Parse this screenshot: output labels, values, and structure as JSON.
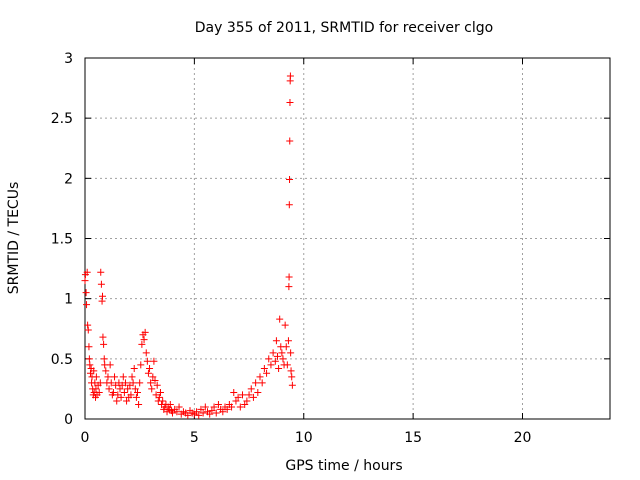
{
  "chart_data": {
    "type": "scatter",
    "title": "Day 355 of 2011, SRMTID for receiver clgo",
    "xlabel": "GPS time / hours",
    "ylabel": "SRMTID / TECUs",
    "xlim": [
      0,
      24
    ],
    "ylim": [
      0,
      3
    ],
    "grid": true,
    "marker": "+",
    "color": "#ff0000",
    "x_ticks": [
      0,
      5,
      10,
      15,
      20
    ],
    "x_tick_labels": [
      "0",
      "5",
      "10",
      "15",
      "20"
    ],
    "y_ticks": [
      0,
      0.5,
      1,
      1.5,
      2,
      2.5,
      3
    ],
    "y_tick_labels": [
      "0",
      "0.5",
      "1",
      "1.5",
      "2",
      "2.5",
      "3"
    ],
    "series": [
      {
        "name": "SRMTID",
        "points": [
          [
            0.0,
            1.15
          ],
          [
            0.02,
            1.2
          ],
          [
            0.05,
            1.05
          ],
          [
            0.07,
            0.95
          ],
          [
            0.1,
            1.22
          ],
          [
            0.12,
            0.78
          ],
          [
            0.15,
            0.74
          ],
          [
            0.18,
            0.6
          ],
          [
            0.2,
            0.5
          ],
          [
            0.22,
            0.45
          ],
          [
            0.25,
            0.38
          ],
          [
            0.28,
            0.42
          ],
          [
            0.3,
            0.3
          ],
          [
            0.32,
            0.35
          ],
          [
            0.35,
            0.25
          ],
          [
            0.38,
            0.2
          ],
          [
            0.4,
            0.4
          ],
          [
            0.42,
            0.22
          ],
          [
            0.45,
            0.3
          ],
          [
            0.48,
            0.18
          ],
          [
            0.5,
            0.25
          ],
          [
            0.52,
            0.35
          ],
          [
            0.55,
            0.2
          ],
          [
            0.6,
            0.28
          ],
          [
            0.65,
            0.22
          ],
          [
            0.7,
            0.3
          ],
          [
            0.72,
            1.22
          ],
          [
            0.75,
            1.12
          ],
          [
            0.78,
            0.98
          ],
          [
            0.8,
            1.02
          ],
          [
            0.82,
            0.68
          ],
          [
            0.85,
            0.62
          ],
          [
            0.88,
            0.5
          ],
          [
            0.9,
            0.45
          ],
          [
            0.95,
            0.4
          ],
          [
            1.0,
            0.3
          ],
          [
            1.05,
            0.35
          ],
          [
            1.1,
            0.25
          ],
          [
            1.15,
            0.45
          ],
          [
            1.2,
            0.3
          ],
          [
            1.25,
            0.2
          ],
          [
            1.3,
            0.22
          ],
          [
            1.35,
            0.35
          ],
          [
            1.4,
            0.28
          ],
          [
            1.45,
            0.15
          ],
          [
            1.5,
            0.2
          ],
          [
            1.55,
            0.3
          ],
          [
            1.6,
            0.25
          ],
          [
            1.65,
            0.18
          ],
          [
            1.7,
            0.28
          ],
          [
            1.75,
            0.35
          ],
          [
            1.8,
            0.22
          ],
          [
            1.85,
            0.3
          ],
          [
            1.9,
            0.15
          ],
          [
            1.95,
            0.25
          ],
          [
            2.0,
            0.18
          ],
          [
            2.05,
            0.28
          ],
          [
            2.1,
            0.2
          ],
          [
            2.15,
            0.35
          ],
          [
            2.2,
            0.3
          ],
          [
            2.25,
            0.42
          ],
          [
            2.3,
            0.25
          ],
          [
            2.35,
            0.18
          ],
          [
            2.4,
            0.22
          ],
          [
            2.45,
            0.12
          ],
          [
            2.5,
            0.3
          ],
          [
            2.55,
            0.45
          ],
          [
            2.6,
            0.62
          ],
          [
            2.65,
            0.7
          ],
          [
            2.7,
            0.66
          ],
          [
            2.75,
            0.72
          ],
          [
            2.8,
            0.55
          ],
          [
            2.85,
            0.48
          ],
          [
            2.9,
            0.38
          ],
          [
            2.95,
            0.42
          ],
          [
            3.0,
            0.3
          ],
          [
            3.05,
            0.25
          ],
          [
            3.1,
            0.35
          ],
          [
            3.15,
            0.48
          ],
          [
            3.2,
            0.32
          ],
          [
            3.25,
            0.2
          ],
          [
            3.3,
            0.28
          ],
          [
            3.35,
            0.15
          ],
          [
            3.4,
            0.18
          ],
          [
            3.45,
            0.22
          ],
          [
            3.5,
            0.12
          ],
          [
            3.55,
            0.15
          ],
          [
            3.6,
            0.08
          ],
          [
            3.65,
            0.1
          ],
          [
            3.7,
            0.12
          ],
          [
            3.75,
            0.06
          ],
          [
            3.8,
            0.1
          ],
          [
            3.85,
            0.08
          ],
          [
            3.9,
            0.12
          ],
          [
            3.95,
            0.07
          ],
          [
            4.0,
            0.05
          ],
          [
            4.1,
            0.08
          ],
          [
            4.2,
            0.06
          ],
          [
            4.3,
            0.1
          ],
          [
            4.4,
            0.04
          ],
          [
            4.5,
            0.06
          ],
          [
            4.6,
            0.05
          ],
          [
            4.7,
            0.03
          ],
          [
            4.8,
            0.07
          ],
          [
            4.9,
            0.05
          ],
          [
            5.0,
            0.04
          ],
          [
            5.1,
            0.06
          ],
          [
            5.2,
            0.03
          ],
          [
            5.3,
            0.08
          ],
          [
            5.4,
            0.05
          ],
          [
            5.5,
            0.1
          ],
          [
            5.6,
            0.06
          ],
          [
            5.7,
            0.04
          ],
          [
            5.8,
            0.07
          ],
          [
            5.9,
            0.1
          ],
          [
            6.0,
            0.05
          ],
          [
            6.1,
            0.12
          ],
          [
            6.2,
            0.08
          ],
          [
            6.3,
            0.06
          ],
          [
            6.4,
            0.1
          ],
          [
            6.5,
            0.08
          ],
          [
            6.6,
            0.12
          ],
          [
            6.7,
            0.1
          ],
          [
            6.8,
            0.22
          ],
          [
            6.9,
            0.15
          ],
          [
            7.0,
            0.18
          ],
          [
            7.1,
            0.1
          ],
          [
            7.2,
            0.2
          ],
          [
            7.3,
            0.12
          ],
          [
            7.4,
            0.15
          ],
          [
            7.5,
            0.2
          ],
          [
            7.6,
            0.25
          ],
          [
            7.7,
            0.18
          ],
          [
            7.8,
            0.3
          ],
          [
            7.9,
            0.22
          ],
          [
            8.0,
            0.35
          ],
          [
            8.1,
            0.3
          ],
          [
            8.2,
            0.42
          ],
          [
            8.3,
            0.38
          ],
          [
            8.4,
            0.5
          ],
          [
            8.5,
            0.45
          ],
          [
            8.6,
            0.55
          ],
          [
            8.7,
            0.48
          ],
          [
            8.75,
            0.65
          ],
          [
            8.8,
            0.52
          ],
          [
            8.85,
            0.42
          ],
          [
            8.9,
            0.83
          ],
          [
            8.95,
            0.6
          ],
          [
            9.0,
            0.55
          ],
          [
            9.05,
            0.5
          ],
          [
            9.1,
            0.45
          ],
          [
            9.15,
            0.78
          ],
          [
            9.2,
            0.6
          ],
          [
            9.25,
            0.45
          ],
          [
            9.3,
            0.65
          ],
          [
            9.32,
            1.1
          ],
          [
            9.33,
            1.18
          ],
          [
            9.34,
            1.78
          ],
          [
            9.35,
            1.99
          ],
          [
            9.36,
            2.31
          ],
          [
            9.37,
            2.63
          ],
          [
            9.38,
            2.81
          ],
          [
            9.39,
            2.85
          ],
          [
            9.4,
            0.55
          ],
          [
            9.42,
            0.4
          ],
          [
            9.45,
            0.35
          ],
          [
            9.48,
            0.28
          ]
        ]
      }
    ]
  }
}
